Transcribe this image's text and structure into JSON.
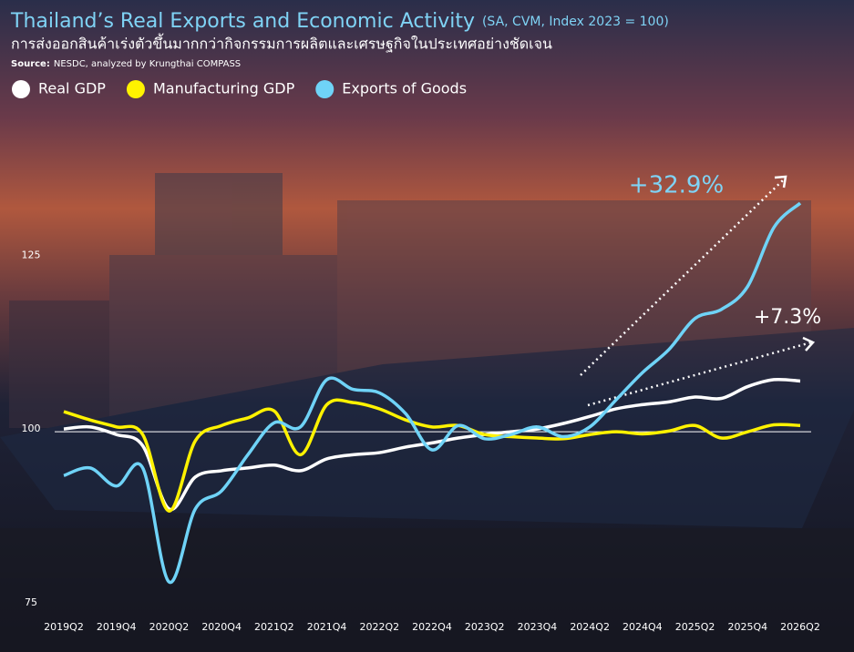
{
  "chart_data": {
    "type": "line",
    "title": "Thailand’s Real Exports and Economic Activity",
    "title_note": "(SA, CVM, Index 2023 = 100)",
    "subtitle": "การส่งออกสินค้าเร่งตัวขึ้นมากกว่ากิจกรรมการผลิตและเศรษฐกิจในประเทศอย่างชัดเจน",
    "source_label": "Source:",
    "source": "NESDC, analyzed by Krungthai COMPASS",
    "categories": [
      "2019Q2",
      null,
      "2019Q4",
      null,
      "2020Q2",
      null,
      "2020Q4",
      null,
      "2021Q2",
      null,
      "2021Q4",
      null,
      "2022Q2",
      null,
      "2022Q4",
      null,
      "2023Q2",
      null,
      "2023Q4",
      null,
      "2024Q2",
      null,
      "2024Q4",
      null,
      "2025Q2",
      null,
      "2025Q4",
      null,
      "2026Q2"
    ],
    "series": [
      {
        "name": "Real GDP",
        "color": "#ffffff",
        "values": [
          100.4,
          100.7,
          99.6,
          98.0,
          88.9,
          93.5,
          94.4,
          94.8,
          95.2,
          94.4,
          96.1,
          96.7,
          97.0,
          97.8,
          98.4,
          99.1,
          99.6,
          100.0,
          100.4,
          101.2,
          102.2,
          103.3,
          103.9,
          104.3,
          105.0,
          104.8,
          106.5,
          107.5,
          107.3
        ]
      },
      {
        "name": "Manufacturing GDP",
        "color": "#fff200",
        "values": [
          102.9,
          101.7,
          100.7,
          99.6,
          88.6,
          98.7,
          100.9,
          102.0,
          103.0,
          96.7,
          103.9,
          104.2,
          103.3,
          101.7,
          100.7,
          100.9,
          99.6,
          99.3,
          99.1,
          99.0,
          99.6,
          100.0,
          99.7,
          100.1,
          100.9,
          99.1,
          100.0,
          101.0,
          100.9
        ]
      },
      {
        "name": "Exports of Goods",
        "color": "#6fd3f7",
        "values": [
          93.7,
          94.8,
          92.2,
          94.8,
          78.4,
          88.9,
          91.5,
          96.7,
          101.3,
          100.7,
          107.5,
          106.1,
          105.6,
          102.6,
          97.4,
          100.9,
          99.0,
          99.6,
          100.7,
          99.3,
          100.7,
          104.6,
          108.5,
          111.8,
          116.3,
          117.6,
          120.9,
          129.4,
          132.9
        ]
      }
    ],
    "annotations": [
      "+32.9%",
      "+7.3%"
    ],
    "ylim": [
      75,
      135
    ],
    "yticks": [
      75,
      100,
      125
    ],
    "reference_line": 100,
    "grid": false
  }
}
